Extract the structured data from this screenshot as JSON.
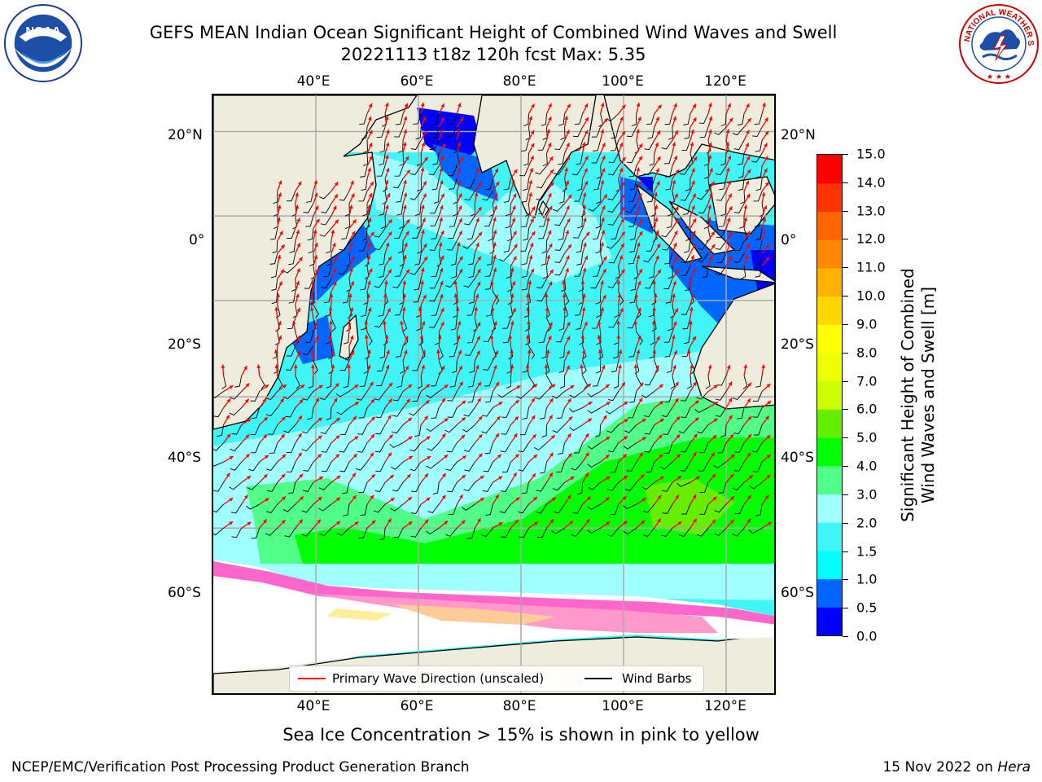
{
  "header": {
    "title_line1": "GEFS MEAN Indian Ocean Significant Height of Combined Wind Waves and Swell",
    "title_line2": "20221113 t18z 120h fcst   Max: 5.35"
  },
  "logos": {
    "left": {
      "icon": "noaa-logo",
      "text": "NOAA",
      "ring_text": "NATIONAL OCEANIC AND ATMOSPHERIC ADMINISTRATION · U.S. DEPARTMENT OF COMMERCE"
    },
    "right": {
      "icon": "nws-logo",
      "ring_text": "NATIONAL WEATHER SERVICE"
    }
  },
  "map": {
    "lon_ticks_top": [
      "40°E",
      "60°E",
      "80°E",
      "100°E",
      "120°E"
    ],
    "lon_ticks_bottom": [
      "40°E",
      "60°E",
      "80°E",
      "100°E",
      "120°E"
    ],
    "lat_ticks_left": [
      "20°N",
      "0°",
      "20°S",
      "40°S",
      "60°S"
    ],
    "lat_ticks_right": [
      "20°N",
      "0°",
      "20°S",
      "40°S",
      "60°S"
    ],
    "lon_range": [
      20,
      130
    ],
    "lat_range": [
      -75,
      28
    ],
    "land_color": "#eeecdc",
    "ice_colors": [
      "#ff66cc",
      "#ff99cc",
      "#ffcc99",
      "#ffee99"
    ],
    "wave_arrow_color": "#ff0000",
    "wind_barb_color": "#000000"
  },
  "colorbar": {
    "label_line1": "Significant Height of Combined",
    "label_line2": "Wind Waves and Swell [m]",
    "ticks": [
      "0.0",
      "0.5",
      "1.0",
      "1.5",
      "2.0",
      "3.0",
      "4.0",
      "5.0",
      "6.0",
      "7.0",
      "8.0",
      "9.0",
      "10.0",
      "11.0",
      "12.0",
      "13.0",
      "14.0",
      "15.0"
    ],
    "colors": [
      "#0000ff",
      "#0066ff",
      "#00ffff",
      "#40f5f5",
      "#a0ffff",
      "#50ff88",
      "#00ff00",
      "#66ee00",
      "#ccff00",
      "#eeff00",
      "#ffff00",
      "#ffd700",
      "#ffb000",
      "#ff8800",
      "#ff6600",
      "#ff3300",
      "#ff0000"
    ]
  },
  "legend": {
    "wave_label": "Primary Wave Direction (unscaled)",
    "wind_label": "Wind Barbs"
  },
  "caption": "Sea Ice Concentration > 15% is shown in pink to yellow",
  "footer": {
    "left": "NCEP/EMC/Verification Post Processing Product Generation Branch",
    "right_text": "15 Nov 2022 on ",
    "right_host": "Hera"
  }
}
